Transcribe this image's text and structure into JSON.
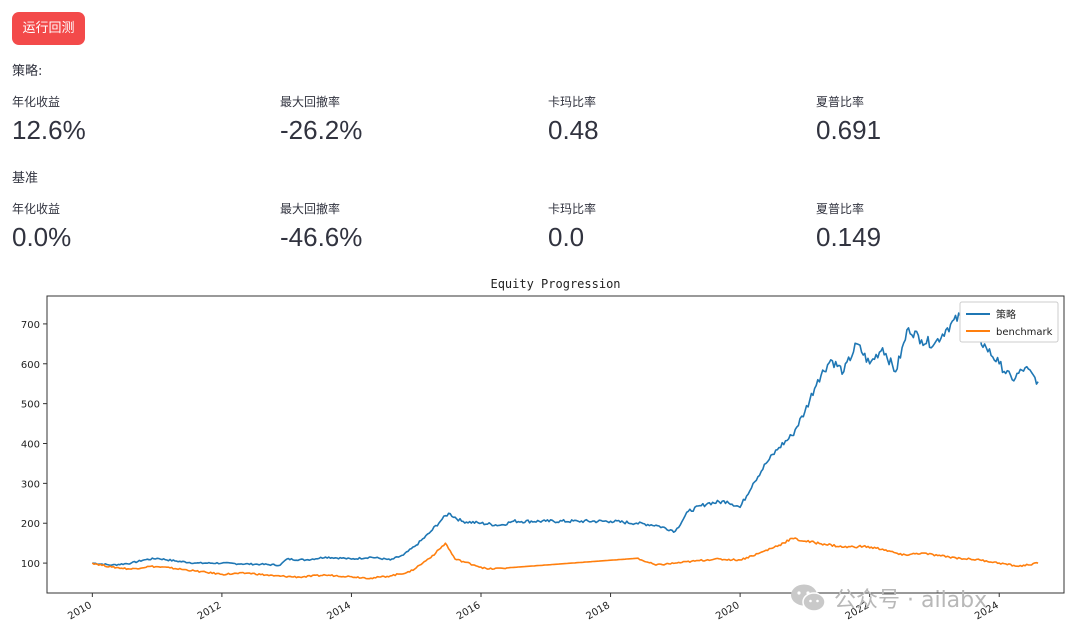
{
  "run_button": {
    "label": "运行回测"
  },
  "strategy": {
    "section_label": "策略:",
    "metrics": [
      {
        "label": "年化收益",
        "value": "12.6%"
      },
      {
        "label": "最大回撤率",
        "value": "-26.2%"
      },
      {
        "label": "卡玛比率",
        "value": "0.48"
      },
      {
        "label": "夏普比率",
        "value": "0.691"
      }
    ]
  },
  "benchmark": {
    "section_label": "基准",
    "metrics": [
      {
        "label": "年化收益",
        "value": "0.0%"
      },
      {
        "label": "最大回撤率",
        "value": "-46.6%"
      },
      {
        "label": "卡玛比率",
        "value": "0.0"
      },
      {
        "label": "夏普比率",
        "value": "0.149"
      }
    ]
  },
  "watermark": {
    "text": "公众号 · ailabx"
  },
  "colors": {
    "button": "#f34a4a",
    "strategy": "#1f77b4",
    "benchmark": "#ff7f0e"
  },
  "chart_data": {
    "type": "line",
    "title": "Equity Progression",
    "xlabel": "",
    "ylabel": "",
    "xlim": [
      2009.3,
      2025.0
    ],
    "ylim": [
      25,
      770
    ],
    "x_ticks": [
      2010,
      2012,
      2014,
      2016,
      2018,
      2020,
      2022,
      2024
    ],
    "y_ticks": [
      100,
      200,
      300,
      400,
      500,
      600,
      700
    ],
    "legend_position": "top-right",
    "series": [
      {
        "name": "策略",
        "color": "#1f77b4",
        "x": [
          2010.0,
          2010.3,
          2010.6,
          2010.8,
          2011.0,
          2011.3,
          2011.6,
          2012.0,
          2012.3,
          2012.6,
          2012.9,
          2013.0,
          2013.3,
          2013.6,
          2013.9,
          2014.0,
          2014.3,
          2014.6,
          2014.8,
          2015.0,
          2015.2,
          2015.4,
          2015.5,
          2015.7,
          2016.0,
          2016.3,
          2016.5,
          2017.0,
          2017.5,
          2018.0,
          2018.4,
          2018.7,
          2019.0,
          2019.2,
          2019.5,
          2019.8,
          2020.0,
          2020.2,
          2020.4,
          2020.6,
          2020.8,
          2021.0,
          2021.2,
          2021.4,
          2021.6,
          2021.8,
          2022.0,
          2022.2,
          2022.4,
          2022.6,
          2022.8,
          2023.0,
          2023.2,
          2023.4,
          2023.6,
          2023.8,
          2024.0,
          2024.2,
          2024.4,
          2024.6
        ],
        "y": [
          100,
          95,
          100,
          108,
          112,
          105,
          100,
          100,
          98,
          97,
          95,
          110,
          108,
          115,
          112,
          110,
          115,
          108,
          120,
          145,
          175,
          210,
          225,
          205,
          200,
          195,
          205,
          205,
          205,
          205,
          200,
          195,
          180,
          230,
          250,
          255,
          240,
          300,
          350,
          390,
          420,
          480,
          560,
          610,
          580,
          650,
          600,
          640,
          580,
          690,
          660,
          650,
          690,
          720,
          680,
          640,
          600,
          560,
          590,
          555
        ]
      },
      {
        "name": "benchmark",
        "color": "#ff7f0e",
        "x": [
          2010.0,
          2010.3,
          2010.6,
          2010.9,
          2011.2,
          2011.6,
          2012.0,
          2012.4,
          2012.8,
          2013.2,
          2013.6,
          2014.0,
          2014.3,
          2014.6,
          2014.9,
          2015.1,
          2015.3,
          2015.45,
          2015.6,
          2015.9,
          2016.1,
          2016.4,
          2018.4,
          2018.7,
          2019.0,
          2019.3,
          2019.6,
          2020.0,
          2020.3,
          2020.6,
          2020.8,
          2021.0,
          2021.3,
          2021.6,
          2021.9,
          2022.2,
          2022.5,
          2022.8,
          2023.1,
          2023.4,
          2023.7,
          2024.0,
          2024.3,
          2024.6
        ],
        "y": [
          100,
          90,
          85,
          92,
          88,
          80,
          72,
          75,
          68,
          65,
          70,
          66,
          62,
          68,
          78,
          100,
          125,
          150,
          110,
          95,
          85,
          88,
          112,
          95,
          100,
          105,
          110,
          108,
          125,
          145,
          162,
          155,
          148,
          140,
          142,
          135,
          120,
          125,
          118,
          112,
          108,
          100,
          92,
          100
        ]
      }
    ]
  }
}
